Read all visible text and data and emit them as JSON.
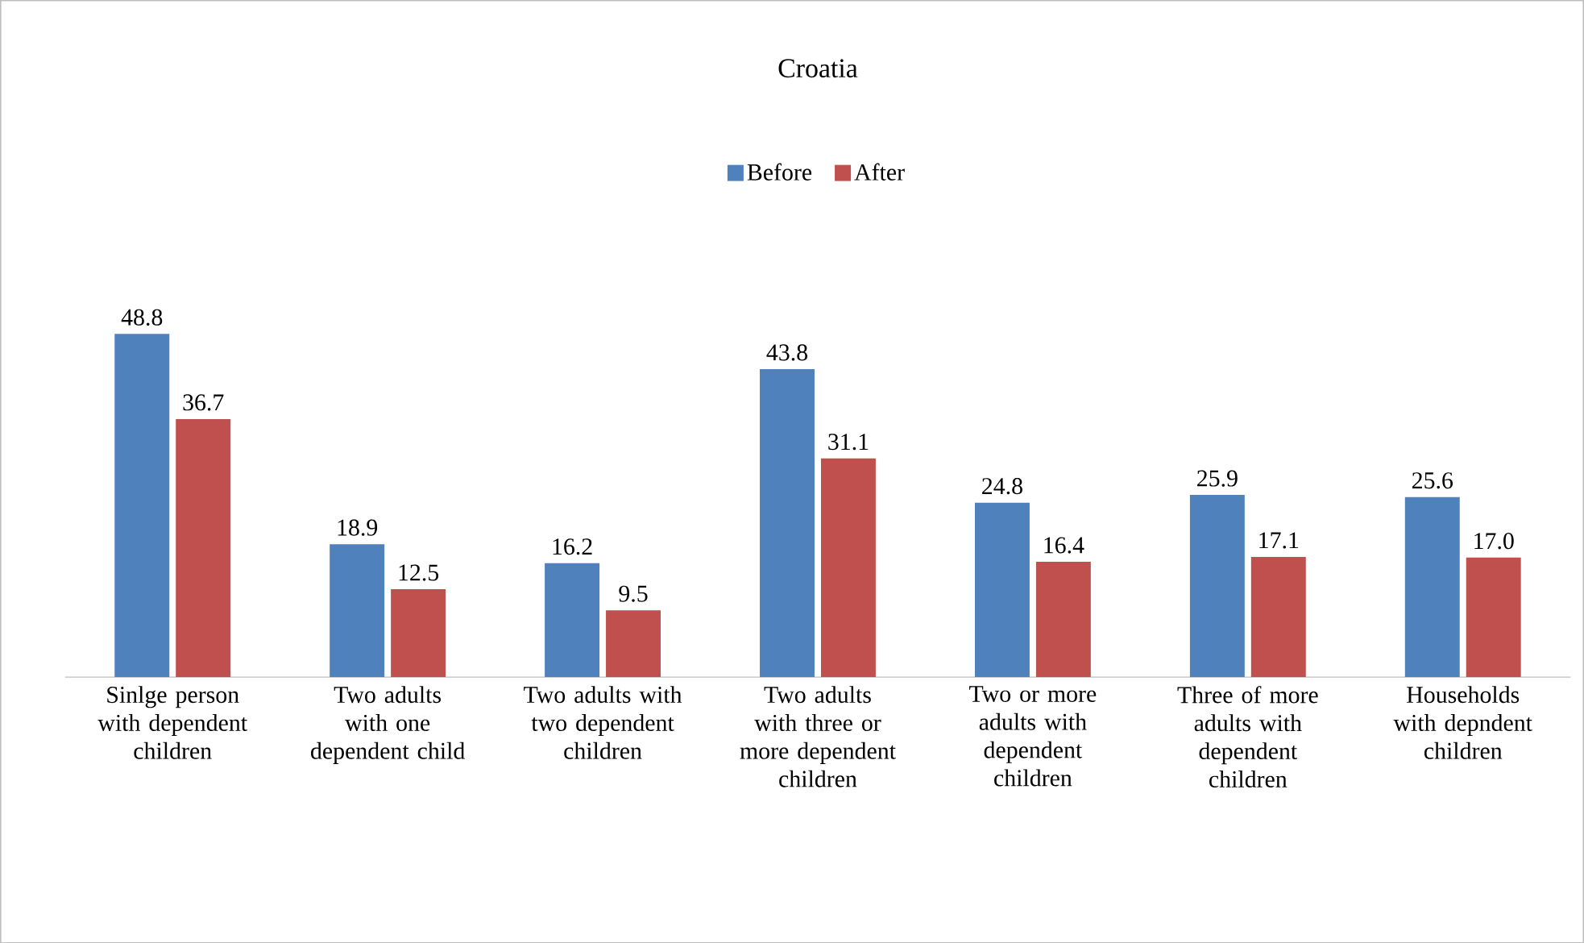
{
  "chart_data": {
    "type": "bar",
    "title": "Croatia",
    "categories": [
      "Sinlge person with dependent children",
      "Two adults with one dependent child",
      "Two adults with two dependent children",
      "Two adults with three or more dependent children",
      "Two or more adults with dependent children",
      "Three of more adults with dependent children",
      "Households with depndent children"
    ],
    "series": [
      {
        "name": "Before",
        "color": "#4f81bd",
        "values": [
          48.8,
          18.9,
          16.2,
          43.8,
          24.8,
          25.9,
          25.6
        ],
        "value_labels": [
          "48.8",
          "18.9",
          "16.2",
          "43.8",
          "24.8",
          "25.9",
          "25.6"
        ]
      },
      {
        "name": "After",
        "color": "#c0504d",
        "values": [
          36.7,
          12.5,
          9.5,
          31.1,
          16.4,
          17.1,
          17.0
        ],
        "value_labels": [
          "36.7",
          "12.5",
          "9.5",
          "31.1",
          "16.4",
          "17.1",
          "17.0"
        ]
      }
    ],
    "legend": "top"
  }
}
